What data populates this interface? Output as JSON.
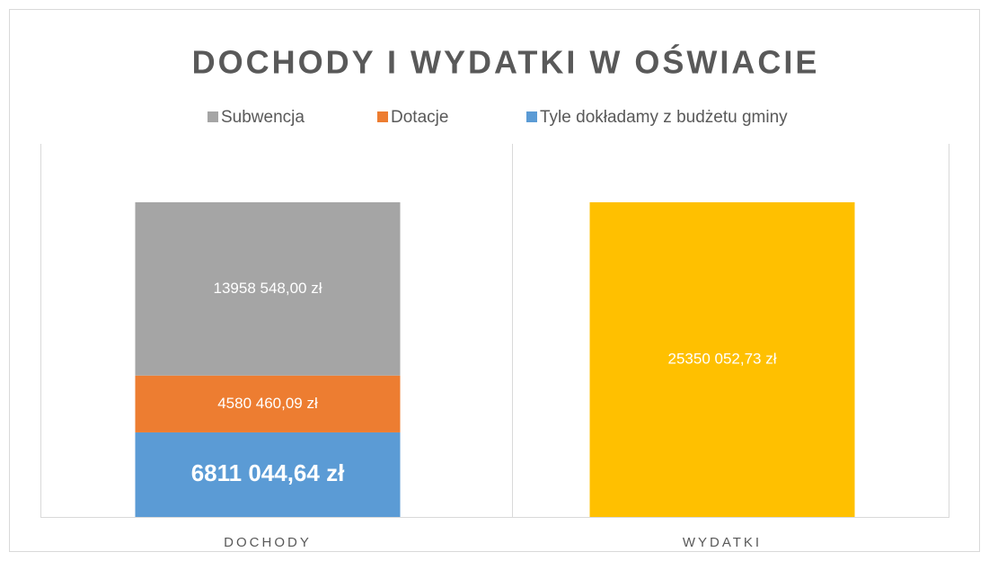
{
  "chart_data": {
    "type": "stacked_bar",
    "title": "DOCHODY I WYDATKI W OŚWIACIE",
    "categories": [
      "DOCHODY",
      "WYDATKI"
    ],
    "series": [
      {
        "name": "Subwencja",
        "color": "#a5a5a5",
        "values": [
          13958548.0,
          null
        ],
        "value_labels": [
          "13958 548,00 zł",
          null
        ]
      },
      {
        "name": "Dotacje",
        "color": "#ed7d31",
        "values": [
          4580460.09,
          null
        ],
        "value_labels": [
          "4580 460,09 zł",
          null
        ]
      },
      {
        "name": "Tyle dokładamy z budżetu gminy",
        "color": "#5b9bd5",
        "values": [
          6811044.64,
          null
        ],
        "value_labels": [
          "6811 044,64 zł",
          null
        ]
      },
      {
        "color": "#ffc000",
        "values": [
          null,
          25350052.73
        ],
        "value_labels": [
          null,
          "25350 052,73 zł"
        ]
      }
    ],
    "legend": "top"
  }
}
